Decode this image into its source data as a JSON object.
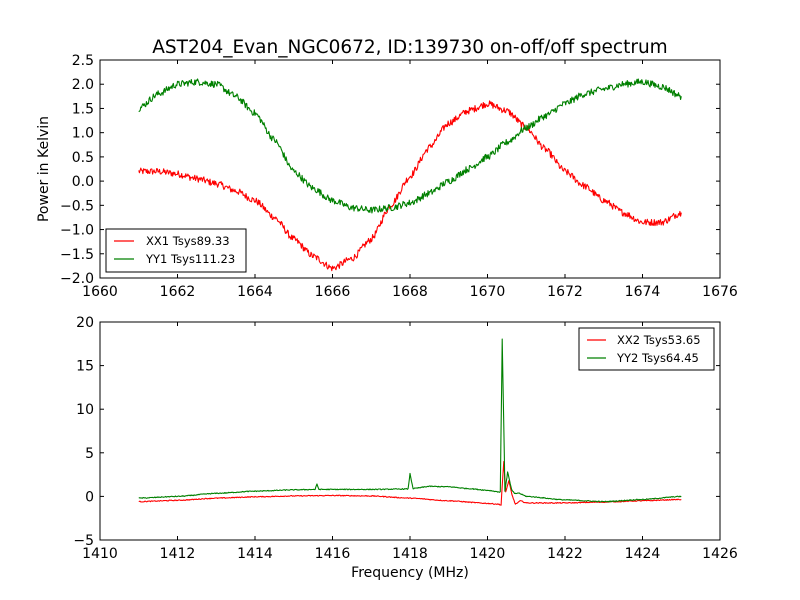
{
  "figure": {
    "title": "AST204_Evan_NGC0672, ID:139730 on-off/off spectrum"
  },
  "colors": {
    "xx": "#ff0000",
    "yy": "#008000",
    "axis": "#000000"
  },
  "chart_data": [
    {
      "type": "line",
      "panel": "top",
      "title": "AST204_Evan_NGC0672, ID:139730 on-off/off spectrum",
      "xlabel": "",
      "ylabel": "Power in Kelvin",
      "xlim": [
        1660,
        1676
      ],
      "ylim": [
        -2.0,
        2.5
      ],
      "xticks": [
        "1660",
        "1662",
        "1664",
        "1666",
        "1668",
        "1670",
        "1672",
        "1674",
        "1676"
      ],
      "yticks": [
        "2.5",
        "2.0",
        "1.5",
        "1.0",
        "0.5",
        "0.0",
        "−0.5",
        "−1.0",
        "−1.5",
        "−2.0"
      ],
      "grid": false,
      "legend_position": "lower-left",
      "x": [
        1661.0,
        1661.5,
        1662.0,
        1662.5,
        1663.0,
        1663.5,
        1664.0,
        1664.5,
        1665.0,
        1665.5,
        1666.0,
        1666.5,
        1667.0,
        1667.5,
        1668.0,
        1668.5,
        1669.0,
        1669.5,
        1670.0,
        1670.5,
        1671.0,
        1671.5,
        1672.0,
        1672.5,
        1673.0,
        1673.5,
        1674.0,
        1674.5,
        1675.0
      ],
      "series": [
        {
          "name": "XX1 Tsys89.33",
          "color_key": "xx",
          "noise": 0.07,
          "values": [
            0.2,
            0.2,
            0.15,
            0.05,
            -0.05,
            -0.2,
            -0.4,
            -0.75,
            -1.2,
            -1.55,
            -1.8,
            -1.6,
            -1.2,
            -0.5,
            0.1,
            0.7,
            1.2,
            1.45,
            1.6,
            1.45,
            1.1,
            0.65,
            0.2,
            -0.1,
            -0.4,
            -0.65,
            -0.85,
            -0.85,
            -0.65
          ]
        },
        {
          "name": "YY1 Tsys111.23",
          "color_key": "yy",
          "noise": 0.07,
          "values": [
            1.5,
            1.8,
            2.0,
            2.05,
            2.0,
            1.75,
            1.4,
            0.85,
            0.2,
            -0.15,
            -0.4,
            -0.55,
            -0.6,
            -0.55,
            -0.45,
            -0.25,
            0.0,
            0.25,
            0.5,
            0.8,
            1.1,
            1.35,
            1.6,
            1.8,
            1.9,
            2.0,
            2.05,
            1.95,
            1.75
          ]
        }
      ]
    },
    {
      "type": "line",
      "panel": "bottom",
      "title": "",
      "xlabel": "Frequency (MHz)",
      "ylabel": "",
      "xlim": [
        1410,
        1426
      ],
      "ylim": [
        -5,
        20
      ],
      "xticks": [
        "1410",
        "1412",
        "1414",
        "1416",
        "1418",
        "1420",
        "1422",
        "1424",
        "1426"
      ],
      "yticks": [
        "20",
        "15",
        "10",
        "5",
        "0",
        "−5"
      ],
      "grid": false,
      "legend_position": "upper-right",
      "series": [
        {
          "name": "XX2 Tsys53.65",
          "color_key": "xx",
          "noise": 0.05,
          "points": [
            [
              1411.0,
              -0.6
            ],
            [
              1412.0,
              -0.45
            ],
            [
              1413.0,
              -0.2
            ],
            [
              1414.0,
              -0.05
            ],
            [
              1415.0,
              0.05
            ],
            [
              1416.0,
              0.1
            ],
            [
              1417.0,
              0.05
            ],
            [
              1418.0,
              -0.2
            ],
            [
              1419.0,
              -0.5
            ],
            [
              1420.0,
              -0.8
            ],
            [
              1420.3,
              -0.9
            ],
            [
              1420.35,
              -1.0
            ],
            [
              1420.42,
              4.0
            ],
            [
              1420.47,
              0.5
            ],
            [
              1420.55,
              1.8
            ],
            [
              1420.63,
              0.2
            ],
            [
              1420.72,
              -0.9
            ],
            [
              1420.85,
              -0.5
            ],
            [
              1421.0,
              -0.75
            ],
            [
              1422.0,
              -0.75
            ],
            [
              1423.0,
              -0.65
            ],
            [
              1424.0,
              -0.5
            ],
            [
              1425.0,
              -0.35
            ]
          ]
        },
        {
          "name": "YY2 Tsys64.45",
          "color_key": "yy",
          "noise": 0.05,
          "points": [
            [
              1411.0,
              -0.2
            ],
            [
              1412.0,
              0.0
            ],
            [
              1413.0,
              0.35
            ],
            [
              1414.0,
              0.6
            ],
            [
              1415.0,
              0.75
            ],
            [
              1415.55,
              0.8
            ],
            [
              1415.6,
              1.4
            ],
            [
              1415.65,
              0.8
            ],
            [
              1416.0,
              0.8
            ],
            [
              1417.0,
              0.8
            ],
            [
              1417.95,
              0.85
            ],
            [
              1418.0,
              2.6
            ],
            [
              1418.08,
              0.9
            ],
            [
              1418.5,
              1.15
            ],
            [
              1419.0,
              1.1
            ],
            [
              1419.5,
              0.9
            ],
            [
              1420.0,
              0.7
            ],
            [
              1420.33,
              0.5
            ],
            [
              1420.38,
              18.0
            ],
            [
              1420.45,
              0.6
            ],
            [
              1420.52,
              2.8
            ],
            [
              1420.62,
              0.8
            ],
            [
              1420.7,
              0.3
            ],
            [
              1420.8,
              0.4
            ],
            [
              1421.0,
              0.0
            ],
            [
              1422.0,
              -0.4
            ],
            [
              1423.0,
              -0.6
            ],
            [
              1424.0,
              -0.35
            ],
            [
              1425.0,
              0.0
            ]
          ]
        }
      ]
    }
  ]
}
